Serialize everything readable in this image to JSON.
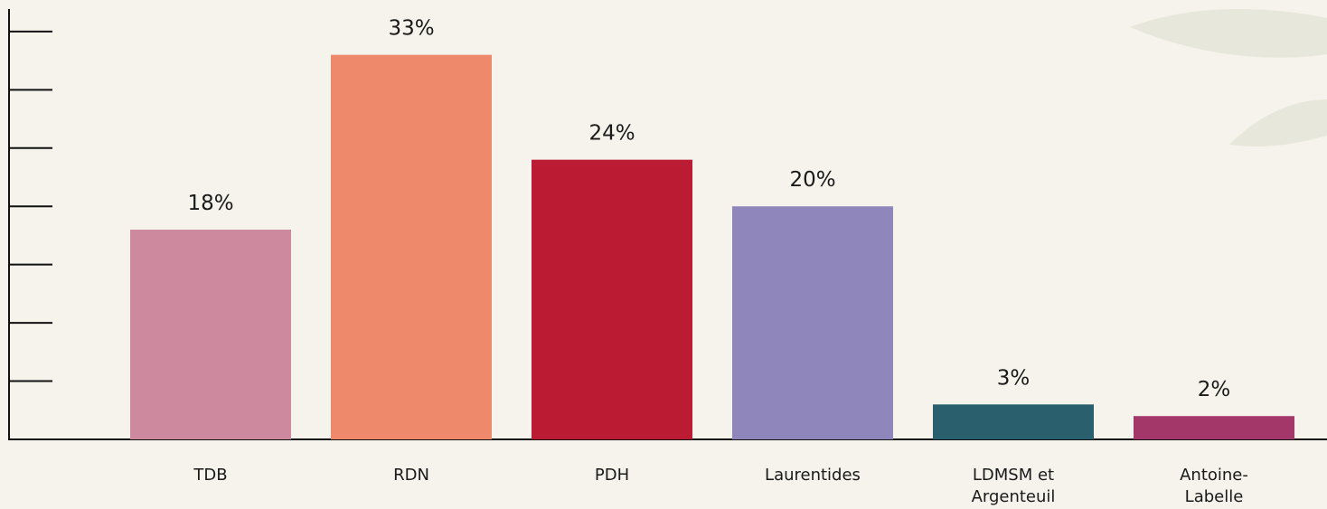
{
  "chart_data": {
    "type": "bar",
    "categories": [
      "TDB",
      "RDN",
      "PDH",
      "Laurentides",
      "LDMSM et Argenteuil",
      "Antoine-Labelle"
    ],
    "values": [
      18,
      33,
      24,
      20,
      3,
      2
    ],
    "value_labels": [
      "18%",
      "33%",
      "24%",
      "20%",
      "3%",
      "2%"
    ],
    "colors": [
      "#cd8a9e",
      "#ef896b",
      "#bb1b33",
      "#8f87bc",
      "#2a5f6e",
      "#a3376a"
    ],
    "ylim": [
      0,
      36
    ],
    "yticks": [
      5,
      10,
      15,
      20,
      25,
      30,
      35
    ]
  }
}
